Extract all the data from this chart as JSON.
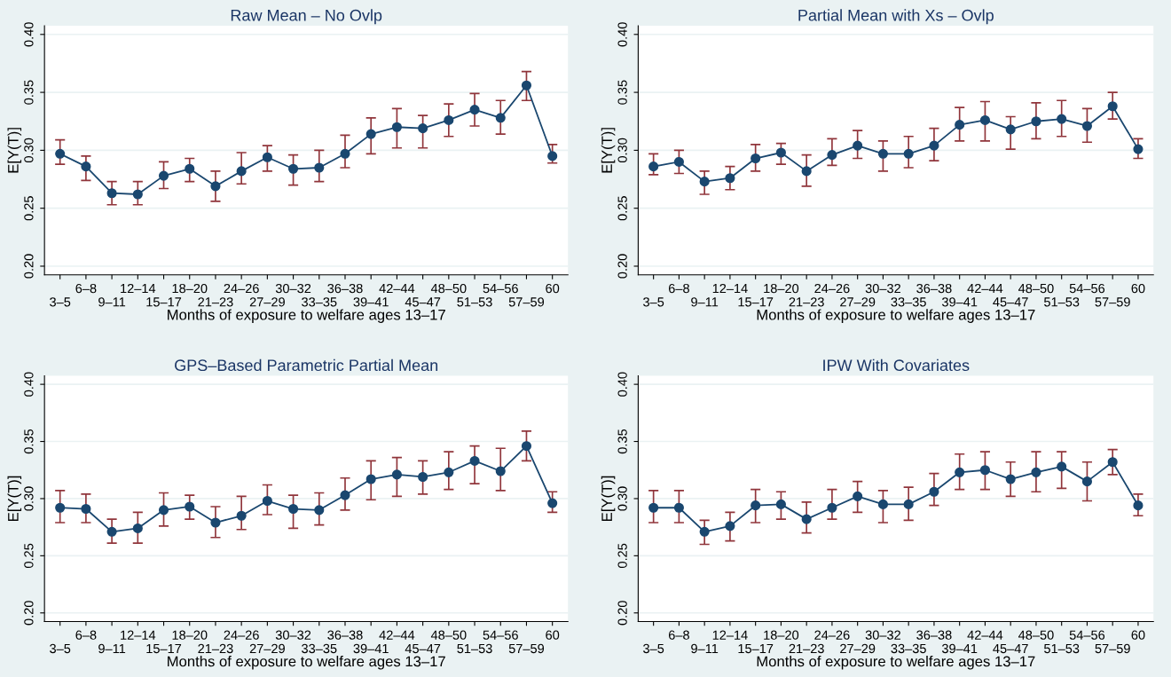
{
  "chart_data": [
    {
      "type": "line",
      "title": "Raw Mean – No Ovlp",
      "xlabel": "Months of exposure to welfare ages 13–17",
      "ylabel": "E[Y(T)]",
      "categories": [
        "3–5",
        "6–8",
        "9–11",
        "12–14",
        "15–17",
        "18–20",
        "21–23",
        "24–26",
        "27–29",
        "30–32",
        "33–35",
        "36–38",
        "39–41",
        "42–44",
        "45–47",
        "48–50",
        "51–53",
        "54–56",
        "57–59",
        "60"
      ],
      "series": [
        {
          "color": "#1a476f",
          "values": [
            0.297,
            0.286,
            0.263,
            0.262,
            0.278,
            0.284,
            0.269,
            0.282,
            0.294,
            0.284,
            0.285,
            0.297,
            0.314,
            0.32,
            0.319,
            0.326,
            0.335,
            0.328,
            0.356,
            0.295
          ],
          "errors": [
            [
              0.288,
              0.309
            ],
            [
              0.274,
              0.295
            ],
            [
              0.253,
              0.273
            ],
            [
              0.253,
              0.273
            ],
            [
              0.267,
              0.29
            ],
            [
              0.273,
              0.293
            ],
            [
              0.256,
              0.282
            ],
            [
              0.271,
              0.298
            ],
            [
              0.282,
              0.304
            ],
            [
              0.27,
              0.296
            ],
            [
              0.273,
              0.3
            ],
            [
              0.285,
              0.313
            ],
            [
              0.297,
              0.328
            ],
            [
              0.302,
              0.336
            ],
            [
              0.302,
              0.33
            ],
            [
              0.312,
              0.34
            ],
            [
              0.321,
              0.349
            ],
            [
              0.314,
              0.343
            ],
            [
              0.343,
              0.368
            ],
            [
              0.289,
              0.305
            ]
          ]
        }
      ],
      "ylim": [
        0.1925,
        0.4075
      ],
      "yticks": [
        {
          "value": 0.2,
          "label": "0.20"
        },
        {
          "value": 0.25,
          "label": "0.25"
        },
        {
          "value": 0.3,
          "label": "0.30"
        },
        {
          "value": 0.35,
          "label": "0.35"
        },
        {
          "value": 0.4,
          "label": "0.40"
        }
      ],
      "grid": "y",
      "marker": "circle",
      "line_style": "solid"
    },
    {
      "type": "line",
      "title": "Partial Mean with Xs – Ovlp",
      "xlabel": "Months of exposure to welfare ages 13–17",
      "ylabel": "E[Y(T)]",
      "categories": [
        "3–5",
        "6–8",
        "9–11",
        "12–14",
        "15–17",
        "18–20",
        "21–23",
        "24–26",
        "27–29",
        "30–32",
        "33–35",
        "36–38",
        "39–41",
        "42–44",
        "45–47",
        "48–50",
        "51–53",
        "54–56",
        "57–59",
        "60"
      ],
      "series": [
        {
          "color": "#1a476f",
          "values": [
            0.286,
            0.29,
            0.273,
            0.276,
            0.293,
            0.298,
            0.282,
            0.296,
            0.304,
            0.297,
            0.297,
            0.304,
            0.322,
            0.326,
            0.318,
            0.325,
            0.327,
            0.321,
            0.338,
            0.301
          ],
          "errors": [
            [
              0.279,
              0.297
            ],
            [
              0.28,
              0.3
            ],
            [
              0.262,
              0.282
            ],
            [
              0.266,
              0.286
            ],
            [
              0.282,
              0.305
            ],
            [
              0.288,
              0.306
            ],
            [
              0.269,
              0.296
            ],
            [
              0.287,
              0.31
            ],
            [
              0.293,
              0.317
            ],
            [
              0.282,
              0.308
            ],
            [
              0.285,
              0.312
            ],
            [
              0.291,
              0.319
            ],
            [
              0.308,
              0.337
            ],
            [
              0.308,
              0.342
            ],
            [
              0.301,
              0.329
            ],
            [
              0.31,
              0.341
            ],
            [
              0.312,
              0.343
            ],
            [
              0.307,
              0.336
            ],
            [
              0.327,
              0.35
            ],
            [
              0.293,
              0.31
            ]
          ]
        }
      ],
      "ylim": [
        0.1925,
        0.4075
      ],
      "yticks": [
        {
          "value": 0.2,
          "label": "0.20"
        },
        {
          "value": 0.25,
          "label": "0.25"
        },
        {
          "value": 0.3,
          "label": "0.30"
        },
        {
          "value": 0.35,
          "label": "0.35"
        },
        {
          "value": 0.4,
          "label": "0.40"
        }
      ],
      "grid": "y",
      "marker": "circle",
      "line_style": "solid"
    },
    {
      "type": "line",
      "title": "GPS–Based Parametric Partial Mean",
      "xlabel": "Months of exposure to welfare ages 13–17",
      "ylabel": "E[Y(T)]",
      "categories": [
        "3–5",
        "6–8",
        "9–11",
        "12–14",
        "15–17",
        "18–20",
        "21–23",
        "24–26",
        "27–29",
        "30–32",
        "33–35",
        "36–38",
        "39–41",
        "42–44",
        "45–47",
        "48–50",
        "51–53",
        "54–56",
        "57–59",
        "60"
      ],
      "series": [
        {
          "color": "#1a476f",
          "values": [
            0.292,
            0.291,
            0.271,
            0.274,
            0.29,
            0.293,
            0.279,
            0.285,
            0.298,
            0.291,
            0.29,
            0.303,
            0.317,
            0.321,
            0.319,
            0.323,
            0.333,
            0.324,
            0.346,
            0.296
          ],
          "errors": [
            [
              0.279,
              0.307
            ],
            [
              0.279,
              0.304
            ],
            [
              0.261,
              0.282
            ],
            [
              0.261,
              0.288
            ],
            [
              0.276,
              0.305
            ],
            [
              0.282,
              0.303
            ],
            [
              0.266,
              0.293
            ],
            [
              0.273,
              0.302
            ],
            [
              0.286,
              0.312
            ],
            [
              0.274,
              0.303
            ],
            [
              0.277,
              0.305
            ],
            [
              0.29,
              0.318
            ],
            [
              0.299,
              0.333
            ],
            [
              0.302,
              0.336
            ],
            [
              0.304,
              0.333
            ],
            [
              0.308,
              0.341
            ],
            [
              0.313,
              0.346
            ],
            [
              0.307,
              0.344
            ],
            [
              0.333,
              0.359
            ],
            [
              0.288,
              0.306
            ]
          ]
        }
      ],
      "ylim": [
        0.1925,
        0.4075
      ],
      "yticks": [
        {
          "value": 0.2,
          "label": "0.20"
        },
        {
          "value": 0.25,
          "label": "0.25"
        },
        {
          "value": 0.3,
          "label": "0.30"
        },
        {
          "value": 0.35,
          "label": "0.35"
        },
        {
          "value": 0.4,
          "label": "0.40"
        }
      ],
      "grid": "y",
      "marker": "circle",
      "line_style": "solid"
    },
    {
      "type": "line",
      "title": "IPW With Covariates",
      "xlabel": "Months of exposure to welfare ages 13–17",
      "ylabel": "E[Y(T)]",
      "categories": [
        "3–5",
        "6–8",
        "9–11",
        "12–14",
        "15–17",
        "18–20",
        "21–23",
        "24–26",
        "27–29",
        "30–32",
        "33–35",
        "36–38",
        "39–41",
        "42–44",
        "45–47",
        "48–50",
        "51–53",
        "54–56",
        "57–59",
        "60"
      ],
      "series": [
        {
          "color": "#1a476f",
          "values": [
            0.292,
            0.292,
            0.271,
            0.276,
            0.294,
            0.295,
            0.282,
            0.292,
            0.302,
            0.295,
            0.295,
            0.306,
            0.323,
            0.325,
            0.317,
            0.323,
            0.328,
            0.315,
            0.332,
            0.294
          ],
          "errors": [
            [
              0.279,
              0.307
            ],
            [
              0.279,
              0.307
            ],
            [
              0.26,
              0.281
            ],
            [
              0.263,
              0.288
            ],
            [
              0.279,
              0.308
            ],
            [
              0.282,
              0.306
            ],
            [
              0.27,
              0.297
            ],
            [
              0.282,
              0.308
            ],
            [
              0.288,
              0.315
            ],
            [
              0.279,
              0.307
            ],
            [
              0.281,
              0.31
            ],
            [
              0.294,
              0.322
            ],
            [
              0.308,
              0.339
            ],
            [
              0.308,
              0.341
            ],
            [
              0.302,
              0.332
            ],
            [
              0.306,
              0.341
            ],
            [
              0.309,
              0.341
            ],
            [
              0.298,
              0.332
            ],
            [
              0.321,
              0.343
            ],
            [
              0.285,
              0.304
            ]
          ]
        }
      ],
      "ylim": [
        0.1925,
        0.4075
      ],
      "yticks": [
        {
          "value": 0.2,
          "label": "0.20"
        },
        {
          "value": 0.25,
          "label": "0.25"
        },
        {
          "value": 0.3,
          "label": "0.30"
        },
        {
          "value": 0.35,
          "label": "0.35"
        },
        {
          "value": 0.4,
          "label": "0.40"
        }
      ],
      "grid": "y",
      "marker": "circle",
      "line_style": "solid"
    }
  ]
}
